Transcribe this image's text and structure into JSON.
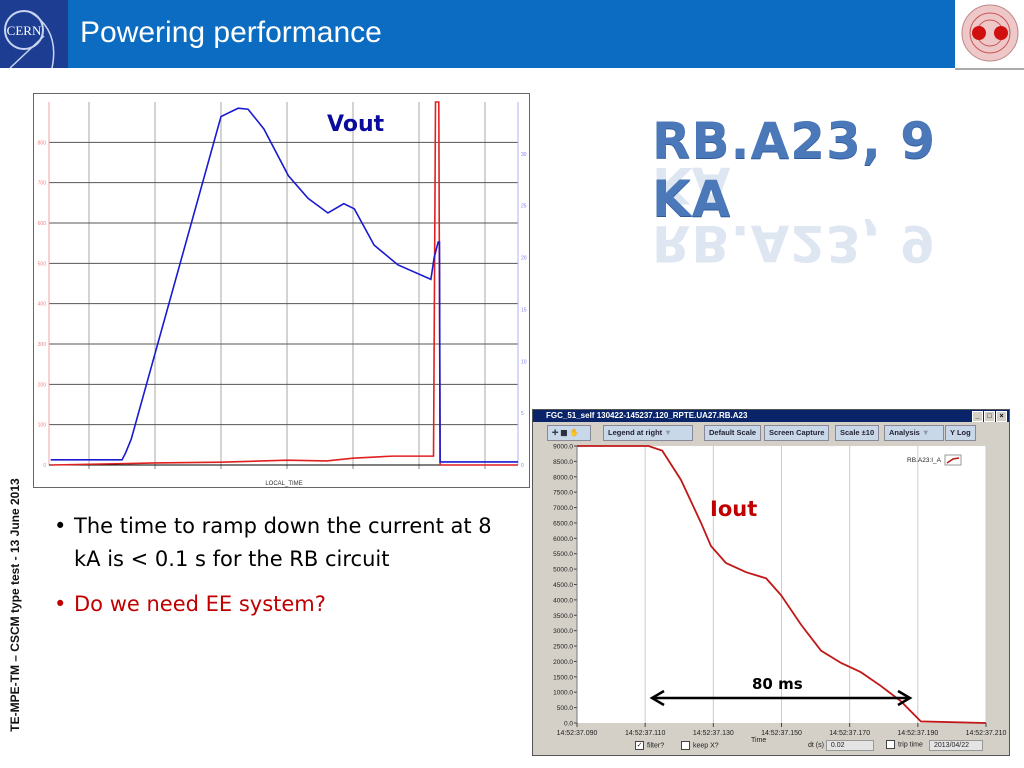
{
  "header": {
    "title": "Powering performance",
    "logo_left": "CERN",
    "logo_right": "LHC magnet cross-section",
    "color": "#0b6cc1"
  },
  "headline": "RB.A23, 9 KA",
  "footer_vertical": "TE-MPE-TM – CSCM type test - 13 June 2013",
  "bullets": [
    {
      "text": "The time to ramp down the current at 8 kA is < 0.1 s for the RB circuit",
      "color": "#000000"
    },
    {
      "text": "Do we need EE system?",
      "color": "#c00000"
    }
  ],
  "annotations": {
    "vout": "Vout",
    "iout": "Iout",
    "duration": "80 ms"
  },
  "fgc_window": {
    "title": "FGC_51_self  130422-145237.120_RPTE.UA27.RB.A23",
    "toolbar": [
      "Legend at right",
      "Default Scale",
      "Screen Capture",
      "Scale ±10",
      "Analysis",
      "Y Log"
    ],
    "controls": {
      "filter_label": "filter?",
      "filter_checked": true,
      "keep_x_label": "keep X?",
      "keep_x_checked": false,
      "time_label": "Time",
      "dt_label": "dt (s)",
      "dt_value": "0.02",
      "trip_time_label": "trip time",
      "trip_time_checked": false,
      "date_value": "2013/04/22"
    }
  },
  "chart_data": [
    {
      "type": "line",
      "xlabel": "LOCAL_TIME",
      "ylim": [
        0,
        900
      ],
      "y2lim": [
        0,
        35
      ],
      "yticks": [
        0,
        100,
        200,
        300,
        400,
        500,
        600,
        700,
        800
      ],
      "y2ticks": [
        0,
        5,
        10,
        15,
        20,
        25,
        30
      ],
      "grid": true,
      "series": [
        {
          "axis": "left",
          "color": "#e02020",
          "x": [
            0.42,
            2.0,
            3.0,
            4.0,
            4.6,
            5.0,
            5.6,
            6.22,
            6.25,
            6.3,
            6.32,
            7.5
          ],
          "y": [
            0,
            5,
            7,
            12,
            10,
            17,
            22,
            22,
            900,
            900,
            0,
            0
          ]
        },
        {
          "name": "Vout",
          "axis": "right",
          "color": "#1a1ad0",
          "x": [
            0.42,
            1.5,
            1.55,
            1.64,
            3.0,
            3.26,
            3.41,
            3.65,
            4.02,
            4.32,
            4.62,
            4.86,
            5.02,
            5.32,
            5.68,
            6.18,
            6.23,
            6.29,
            6.31,
            6.32,
            7.5
          ],
          "y": [
            0.5,
            0.5,
            1.1,
            2.5,
            33.6,
            34.4,
            34.3,
            32.4,
            27.9,
            25.7,
            24.3,
            25.2,
            24.7,
            21.2,
            19.3,
            17.9,
            20.0,
            21.5,
            21.5,
            0.3,
            0.3
          ]
        }
      ]
    },
    {
      "type": "line",
      "xlabel": "Time",
      "xlim": [
        37.09,
        37.21
      ],
      "xticks": [
        "14:52:37.090",
        "14:52:37.110",
        "14:52:37.130",
        "14:52:37.150",
        "14:52:37.170",
        "14:52:37.190",
        "14:52:37.210"
      ],
      "ylim": [
        0,
        9000
      ],
      "yticks": [
        "0.0",
        "500.0",
        "1000.0",
        "1500.0",
        "2000.0",
        "2500.0",
        "3000.0",
        "3500.0",
        "4000.0",
        "4500.0",
        "5000.0",
        "5500.0",
        "6000.0",
        "6500.0",
        "7000.0",
        "7500.0",
        "8000.0",
        "8500.0",
        "9000.0"
      ],
      "legend": "top-right",
      "series": [
        {
          "name": "RB.A23:I_A",
          "color": "#c01818",
          "x": [
            37.09,
            37.111,
            37.115,
            37.1205,
            37.1264,
            37.1293,
            37.1337,
            37.1396,
            37.1455,
            37.1499,
            37.1557,
            37.1616,
            37.1675,
            37.1733,
            37.1792,
            37.1851,
            37.1909,
            37.21
          ],
          "y": [
            9000,
            9000,
            8850,
            7900,
            6500,
            5750,
            5200,
            4900,
            4700,
            4150,
            3200,
            2350,
            1950,
            1650,
            1200,
            700,
            50,
            0
          ]
        }
      ]
    }
  ]
}
